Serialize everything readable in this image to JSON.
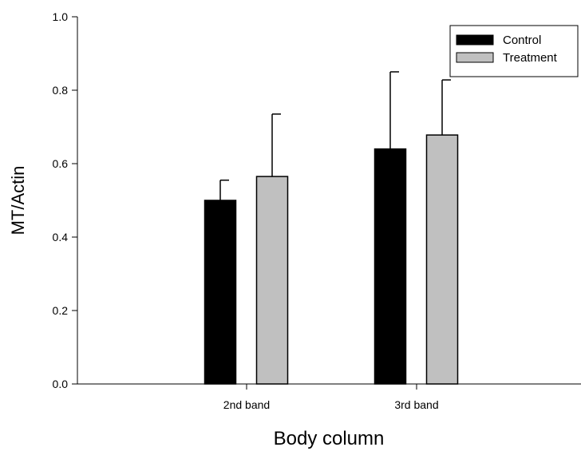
{
  "chart_data": {
    "type": "bar",
    "title": "",
    "xlabel": "Body column",
    "ylabel": "MT/Actin",
    "categories": [
      "2nd band",
      "3rd band"
    ],
    "ylim": [
      0.0,
      1.0
    ],
    "yticks": [
      0.0,
      0.2,
      0.4,
      0.6,
      0.8,
      1.0
    ],
    "ytick_labels": [
      "0.0",
      "0.2",
      "0.4",
      "0.6",
      "0.8",
      "1.0"
    ],
    "grid": false,
    "legend_position": "top-right",
    "error_bars": "upper",
    "series": [
      {
        "name": "Control",
        "color": "#000000",
        "values": [
          0.5,
          0.64
        ],
        "errors": [
          0.055,
          0.21
        ]
      },
      {
        "name": "Treatment",
        "color": "#c0c0c0",
        "values": [
          0.565,
          0.678
        ],
        "errors": [
          0.17,
          0.15
        ]
      }
    ]
  }
}
